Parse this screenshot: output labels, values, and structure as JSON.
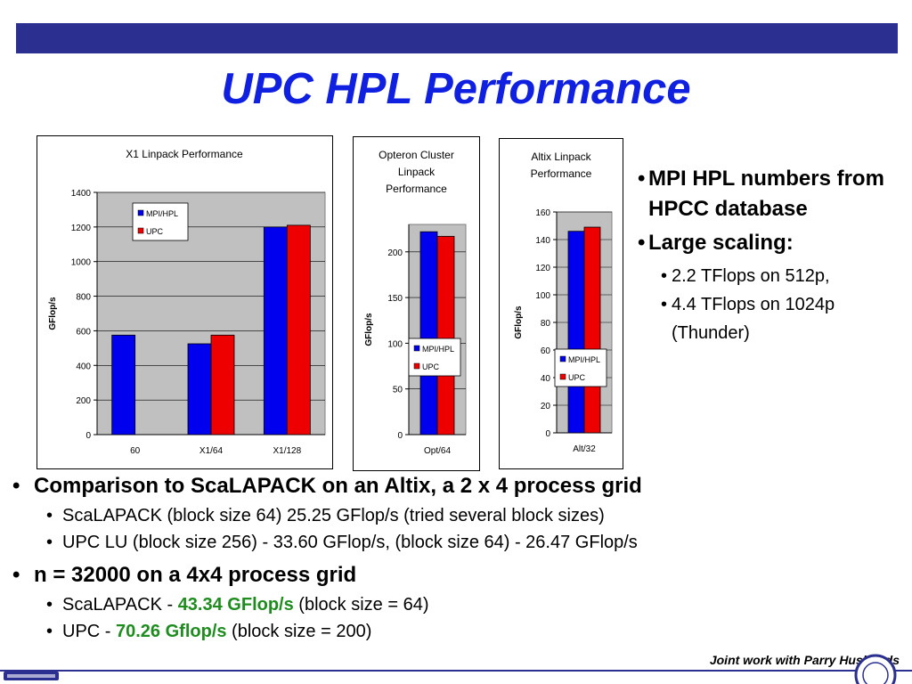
{
  "slide": {
    "title": "UPC HPL Performance"
  },
  "chart_data": [
    {
      "type": "bar",
      "title": "X1 Linpack Performance",
      "ylabel": "GFlop/s",
      "categories": [
        "60",
        "X1/64",
        "X1/128"
      ],
      "series": [
        {
          "name": "MPI/HPL",
          "values": [
            575,
            525,
            1200
          ],
          "color": "#0000ee"
        },
        {
          "name": "UPC",
          "values": [
            null,
            575,
            1210
          ],
          "color": "#ee0000"
        }
      ],
      "ylim": [
        0,
        1400
      ],
      "yticks": [
        "0",
        "200",
        "400",
        "600",
        "800",
        "1000",
        "1200",
        "1400"
      ],
      "grid": true,
      "legend": "top-left"
    },
    {
      "type": "bar",
      "title_lines": [
        "Opteron Cluster",
        "Linpack",
        "Performance"
      ],
      "ylabel": "GFlop/s",
      "categories": [
        "Opt/64"
      ],
      "series": [
        {
          "name": "MPI/HPL",
          "values": [
            222
          ],
          "color": "#0000ee"
        },
        {
          "name": "UPC",
          "values": [
            217
          ],
          "color": "#ee0000"
        }
      ],
      "ylim": [
        0,
        230
      ],
      "yticks": [
        "0",
        "50",
        "100",
        "150",
        "200"
      ],
      "grid": true,
      "legend": "bottom-right"
    },
    {
      "type": "bar",
      "title_lines": [
        "Altix Linpack",
        "Performance"
      ],
      "ylabel": "GFlop/s",
      "categories": [
        "Alt/32"
      ],
      "series": [
        {
          "name": "MPI/HPL",
          "values": [
            146
          ],
          "color": "#0000ee"
        },
        {
          "name": "UPC",
          "values": [
            149
          ],
          "color": "#ee0000"
        }
      ],
      "ylim": [
        0,
        160
      ],
      "yticks": [
        "0",
        "20",
        "40",
        "60",
        "80",
        "100",
        "120",
        "140",
        "160"
      ],
      "grid": true,
      "legend": "bottom-right"
    }
  ],
  "right_notes": {
    "bullet": "•",
    "item1": "MPI HPL numbers from HPCC database",
    "item2": "Large scaling:",
    "sub1": "2.2 TFlops on 512p,",
    "sub2": "4.4 TFlops on 1024p (Thunder)"
  },
  "bottom_notes": {
    "bullet": "•",
    "item1": "Comparison to ScaLAPACK on an Altix, a 2 x 4 process grid",
    "item1_sub1": "ScaLAPACK (block size 64) 25.25 GFlop/s (tried  several block sizes)",
    "item1_sub2": "UPC LU (block size 256) - 33.60 GFlop/s, (block size 64) - 26.47 GFlop/s",
    "item2": "n = 32000 on a 4x4 process grid",
    "item2_sub1_pre": "ScaLAPACK - ",
    "item2_sub1_val": "43.34 GFlop/s",
    "item2_sub1_post": " (block size = 64)",
    "item2_sub2_pre": "UPC - ",
    "item2_sub2_val": "70.26 Gflop/s",
    "item2_sub2_post": " (block size = 200)"
  },
  "footer": {
    "credit": "Joint work with Parry Husbands"
  }
}
